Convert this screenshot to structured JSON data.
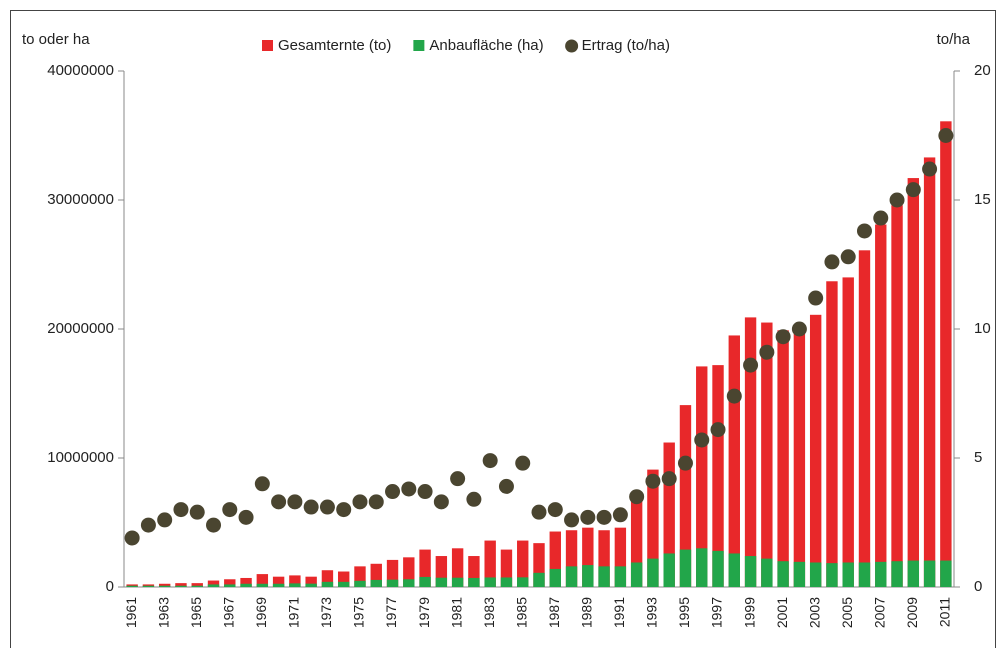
{
  "chart_data": {
    "type": "bar",
    "y_label": "to oder ha",
    "y2_label": "to/ha",
    "categories": [
      "1961",
      null,
      "1963",
      null,
      "1965",
      null,
      "1967",
      null,
      "1969",
      null,
      "1971",
      null,
      "1973",
      null,
      "1975",
      null,
      "1977",
      null,
      "1979",
      null,
      "1981",
      null,
      "1983",
      null,
      "1985",
      null,
      "1987",
      null,
      "1989",
      null,
      "1991",
      null,
      "1993",
      null,
      "1995",
      null,
      "1997",
      null,
      "1999",
      null,
      "2001",
      null,
      "2003",
      null,
      "2005",
      null,
      "2007",
      null,
      "2009",
      null,
      "2011"
    ],
    "series": [
      {
        "name": "Gesamternte (to)",
        "type": "bar",
        "color": "#e8282a",
        "values": [
          200000,
          200000,
          250000,
          300000,
          300000,
          500000,
          600000,
          700000,
          1000000,
          800000,
          900000,
          800000,
          1300000,
          1200000,
          1600000,
          1800000,
          2100000,
          2300000,
          2900000,
          2400000,
          3000000,
          2400000,
          3600000,
          2900000,
          3600000,
          3400000,
          4300000,
          4400000,
          4600000,
          4400000,
          4600000,
          7000000,
          9100000,
          11200000,
          14100000,
          17100000,
          17200000,
          19500000,
          20900000,
          20500000,
          19900000,
          19700000,
          21100000,
          23700000,
          24000000,
          26100000,
          28100000,
          29600000,
          31700000,
          33300000,
          36100000
        ]
      },
      {
        "name": "Anbaufläche (ha)",
        "type": "bar",
        "color": "#22a64a",
        "values": [
          100000,
          100000,
          100000,
          100000,
          100000,
          200000,
          200000,
          250000,
          250000,
          250000,
          280000,
          260000,
          400000,
          400000,
          480000,
          550000,
          570000,
          600000,
          780000,
          720000,
          720000,
          700000,
          740000,
          740000,
          750000,
          1100000,
          1400000,
          1600000,
          1700000,
          1600000,
          1600000,
          1900000,
          2200000,
          2600000,
          2900000,
          3000000,
          2800000,
          2600000,
          2400000,
          2200000,
          2000000,
          1950000,
          1900000,
          1850000,
          1900000,
          1900000,
          1950000,
          2000000,
          2050000,
          2050000,
          2050000
        ]
      },
      {
        "name": "Ertrag (to/ha)",
        "type": "scatter",
        "axis": "y2",
        "color": "#4a4530",
        "values": [
          1.9,
          2.4,
          2.6,
          3.0,
          2.9,
          2.4,
          3.0,
          2.7,
          4.0,
          3.3,
          3.3,
          3.1,
          3.1,
          3.0,
          3.3,
          3.3,
          3.7,
          3.8,
          3.7,
          3.3,
          4.2,
          3.4,
          4.9,
          3.9,
          4.8,
          2.9,
          3.0,
          2.6,
          2.7,
          2.7,
          2.8,
          3.5,
          4.1,
          4.2,
          4.8,
          5.7,
          6.1,
          7.4,
          8.6,
          9.1,
          9.7,
          10.0,
          11.2,
          12.6,
          12.8,
          13.8,
          14.3,
          15.0,
          15.4,
          16.2,
          17.5
        ]
      }
    ],
    "ylim": [
      0,
      40000000
    ],
    "yticks": [
      0,
      10000000,
      20000000,
      30000000,
      40000000
    ],
    "y2lim": [
      0,
      20
    ],
    "y2ticks": [
      0,
      5,
      10,
      15,
      20
    ]
  }
}
